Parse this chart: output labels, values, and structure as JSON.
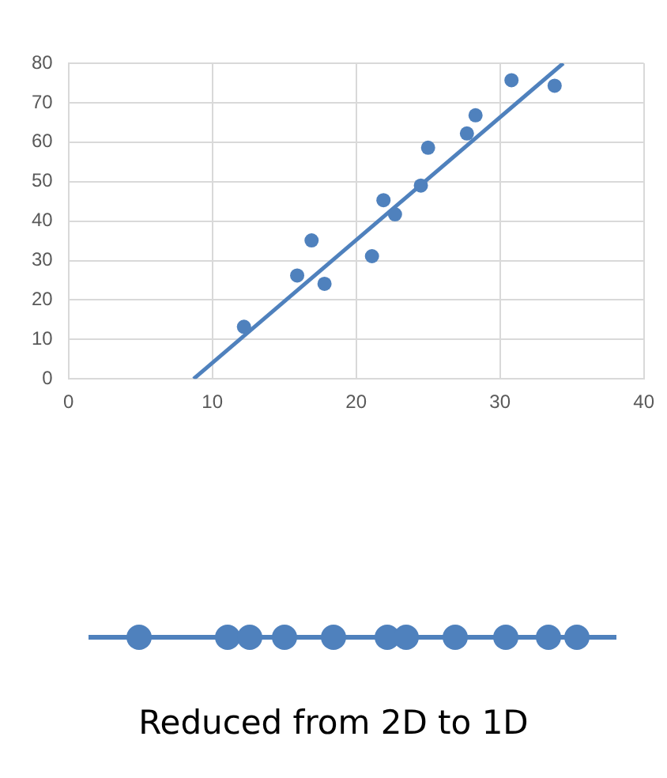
{
  "chart_data": {
    "type": "scatter",
    "xlim": [
      0,
      40
    ],
    "ylim": [
      0,
      80
    ],
    "xticks": [
      0,
      10,
      20,
      30,
      40
    ],
    "yticks": [
      0,
      10,
      20,
      30,
      40,
      50,
      60,
      70,
      80
    ],
    "grid": true,
    "series": [
      {
        "type": "scatter",
        "marker": "circle",
        "color": "#4f81bd",
        "x": [
          12.2,
          15.9,
          16.9,
          17.8,
          21.1,
          21.9,
          22.7,
          24.5,
          25.0,
          27.7,
          28.3,
          30.8,
          33.8
        ],
        "values": [
          13.2,
          26.2,
          35.1,
          24.1,
          31.1,
          45.3,
          41.7,
          49.0,
          58.6,
          62.2,
          66.8,
          75.7,
          74.3
        ]
      },
      {
        "type": "line",
        "marker": "none",
        "color": "#4f81bd",
        "x": [
          8.7,
          34.4
        ],
        "values": [
          0,
          80
        ]
      }
    ],
    "annotations": [
      "Reduced from 2D to 1D"
    ]
  }
}
